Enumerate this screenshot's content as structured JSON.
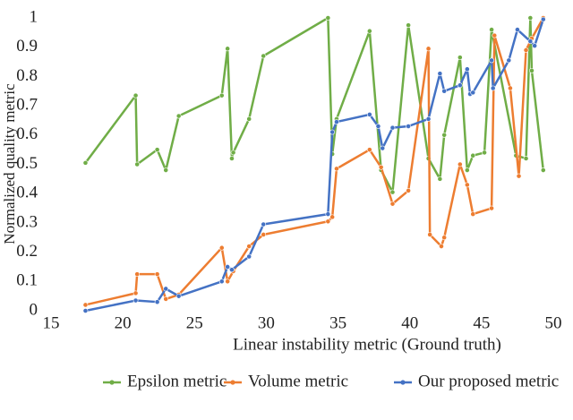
{
  "chart_data": {
    "type": "line",
    "y_label": "Normalized quality metric",
    "x_label": "Linear instability metric (Ground truth)",
    "xlim": [
      15,
      50
    ],
    "xticks": [
      15,
      20,
      25,
      30,
      35,
      40,
      45,
      50
    ],
    "ylim": [
      0,
      1
    ],
    "yticks": [
      0,
      0.1,
      0.2,
      0.3,
      0.4,
      0.5,
      0.6,
      0.7,
      0.8,
      0.9,
      1
    ],
    "grid": false,
    "legend": "bottom",
    "series": [
      {
        "name": "Epsilon metric",
        "color": "#70ad47",
        "x": [
          17.4,
          20.9,
          21.0,
          22.4,
          23.0,
          23.9,
          26.9,
          27.3,
          27.6,
          27.7,
          28.8,
          29.8,
          34.3,
          34.6,
          34.9,
          37.2,
          38.0,
          38.8,
          39.9,
          41.3,
          42.1,
          42.4,
          43.5,
          44.0,
          44.4,
          45.2,
          45.7,
          47.4,
          48.1,
          48.4,
          48.5,
          49.3
        ],
        "values": [
          0.505,
          0.735,
          0.5,
          0.55,
          0.48,
          0.665,
          0.735,
          0.895,
          0.52,
          0.54,
          0.655,
          0.87,
          1.0,
          0.535,
          0.655,
          0.955,
          0.48,
          0.405,
          0.975,
          0.52,
          0.45,
          0.6,
          0.865,
          0.48,
          0.53,
          0.54,
          0.96,
          0.53,
          0.52,
          1.0,
          0.82,
          0.48
        ]
      },
      {
        "name": "Volume metric",
        "color": "#ed7d31",
        "x": [
          17.4,
          20.9,
          21.0,
          22.4,
          23.0,
          23.9,
          26.9,
          27.3,
          27.7,
          28.8,
          29.8,
          34.3,
          34.6,
          34.9,
          37.2,
          38.0,
          38.8,
          39.9,
          41.3,
          41.4,
          42.2,
          42.4,
          43.5,
          44.0,
          44.4,
          45.7,
          45.9,
          47.0,
          47.6,
          48.1,
          48.5,
          49.3
        ],
        "values": [
          0.02,
          0.06,
          0.125,
          0.125,
          0.04,
          0.055,
          0.215,
          0.1,
          0.135,
          0.22,
          0.26,
          0.305,
          0.32,
          0.485,
          0.55,
          0.49,
          0.365,
          0.41,
          0.895,
          0.26,
          0.22,
          0.25,
          0.5,
          0.43,
          0.33,
          0.35,
          0.94,
          0.76,
          0.46,
          0.89,
          0.93,
          1.0
        ]
      },
      {
        "name": "Our proposed metric",
        "color": "#4472c4",
        "x": [
          17.4,
          20.9,
          22.4,
          23.0,
          23.9,
          26.9,
          27.3,
          27.6,
          28.8,
          29.8,
          34.3,
          34.6,
          34.9,
          37.2,
          37.8,
          38.1,
          38.8,
          39.9,
          41.3,
          42.1,
          42.4,
          43.5,
          44.0,
          44.2,
          44.4,
          45.7,
          45.8,
          46.9,
          47.5,
          48.4,
          48.7,
          49.3
        ],
        "values": [
          0.0,
          0.035,
          0.03,
          0.075,
          0.05,
          0.1,
          0.15,
          0.14,
          0.185,
          0.295,
          0.33,
          0.61,
          0.645,
          0.67,
          0.63,
          0.555,
          0.625,
          0.63,
          0.655,
          0.81,
          0.75,
          0.77,
          0.825,
          0.74,
          0.745,
          0.855,
          0.76,
          0.855,
          0.96,
          0.92,
          0.905,
          0.995
        ]
      }
    ]
  }
}
